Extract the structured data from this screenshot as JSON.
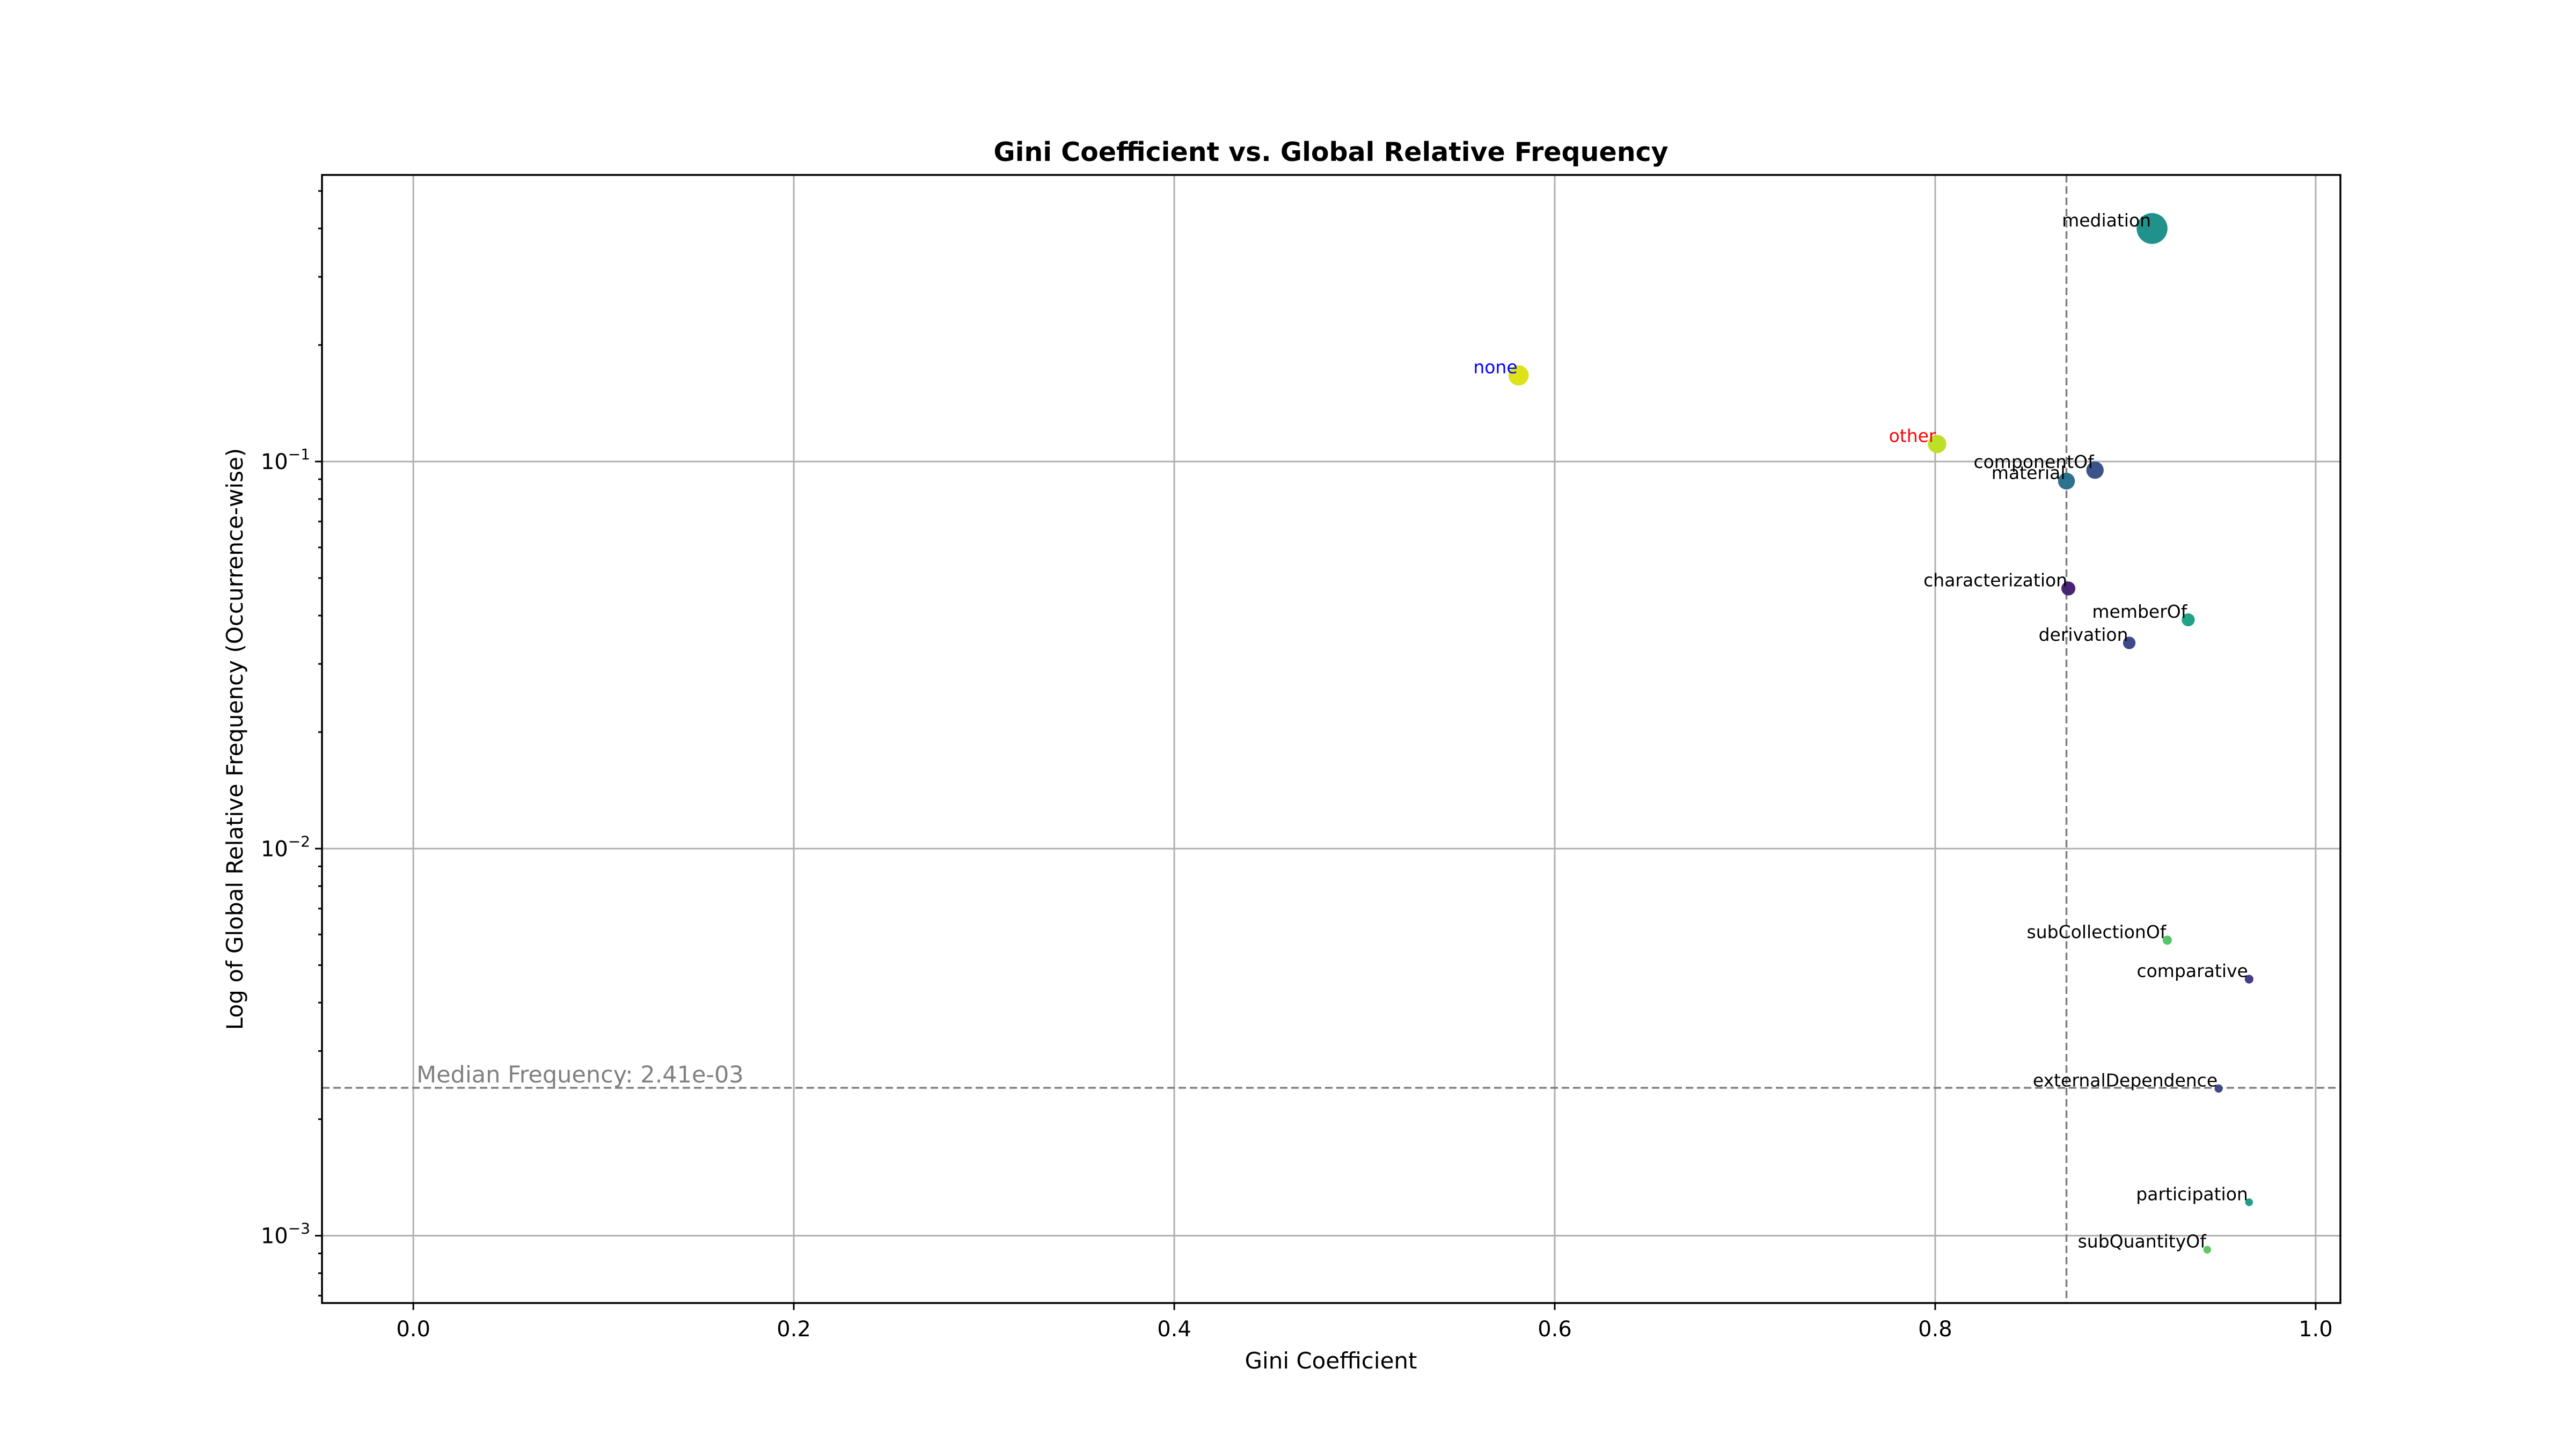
{
  "chart_data": {
    "type": "scatter",
    "title": "Gini Coefficient vs. Global Relative Frequency",
    "xlabel": "Gini Coefficient",
    "ylabel": "Log of Global Relative Frequency (Occurrence-wise)",
    "xlim": [
      -0.048,
      1.013
    ],
    "ylim": [
      0.00067,
      0.55
    ],
    "yscale": "log",
    "grid": true,
    "legend": "none",
    "x_ticks": [
      0.0,
      0.2,
      0.4,
      0.6,
      0.8,
      1.0
    ],
    "x_tick_labels": [
      "0.0",
      "0.2",
      "0.4",
      "0.6",
      "0.8",
      "1.0"
    ],
    "y_ticks": [
      0.001,
      0.01,
      0.1
    ],
    "y_tick_labels": [
      {
        "base": "10",
        "exp": "−3"
      },
      {
        "base": "10",
        "exp": "−2"
      },
      {
        "base": "10",
        "exp": "−1"
      }
    ],
    "median_frequency": {
      "value": 0.00241,
      "label": "Median Frequency: 2.41e-03"
    },
    "median_gini": 0.869,
    "points": [
      {
        "label": "mediation",
        "x": 0.914,
        "y": 0.4,
        "color": "#21918c",
        "label_color": "#000000",
        "size": 3.2
      },
      {
        "label": "none",
        "x": 0.581,
        "y": 0.167,
        "color": "#dde318",
        "label_color": "#0000ff",
        "size": 2.1
      },
      {
        "label": "other",
        "x": 0.801,
        "y": 0.111,
        "color": "#bddf26",
        "label_color": "#ff0000",
        "size": 1.9
      },
      {
        "label": "componentOf",
        "x": 0.884,
        "y": 0.095,
        "color": "#3b528b",
        "label_color": "#000000",
        "size": 1.8
      },
      {
        "label": "material",
        "x": 0.869,
        "y": 0.089,
        "color": "#2c728e",
        "label_color": "#000000",
        "size": 1.75
      },
      {
        "label": "characterization",
        "x": 0.87,
        "y": 0.047,
        "color": "#482475",
        "label_color": "#000000",
        "size": 1.45
      },
      {
        "label": "memberOf",
        "x": 0.933,
        "y": 0.039,
        "color": "#20a386",
        "label_color": "#000000",
        "size": 1.35
      },
      {
        "label": "derivation",
        "x": 0.902,
        "y": 0.034,
        "color": "#3e4989",
        "label_color": "#000000",
        "size": 1.3
      },
      {
        "label": "subCollectionOf",
        "x": 0.922,
        "y": 0.0058,
        "color": "#54c568",
        "label_color": "#000000",
        "size": 0.95
      },
      {
        "label": "comparative",
        "x": 0.965,
        "y": 0.0046,
        "color": "#433e85",
        "label_color": "#000000",
        "size": 0.9
      },
      {
        "label": "externalDependence",
        "x": 0.949,
        "y": 0.0024,
        "color": "#3e4a89",
        "label_color": "#000000",
        "size": 0.85
      },
      {
        "label": "participation",
        "x": 0.965,
        "y": 0.00122,
        "color": "#1fa088",
        "label_color": "#000000",
        "size": 0.8
      },
      {
        "label": "subQuantityOf",
        "x": 0.943,
        "y": 0.00092,
        "color": "#5ec962",
        "label_color": "#000000",
        "size": 0.8
      }
    ]
  }
}
